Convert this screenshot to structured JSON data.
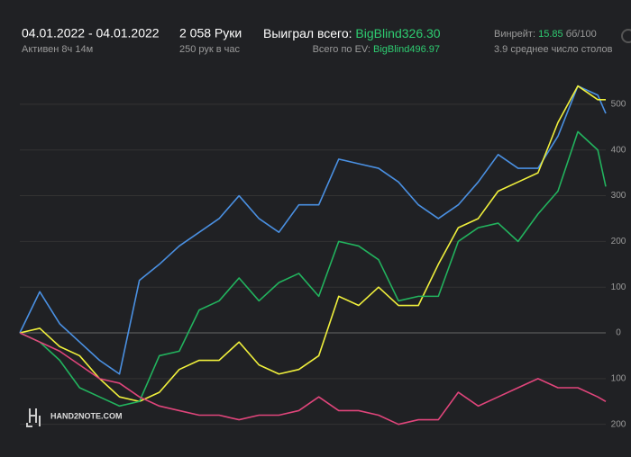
{
  "header": {
    "date_range": "04.01.2022 - 04.01.2022",
    "active": "Активен 8ч 14м",
    "hands": "2 058 Руки",
    "hands_rate": "250 рук в час",
    "won_label": "Выиграл всего:",
    "won_value": "BigBlind326.30",
    "ev_label": "Всего по EV:",
    "ev_value": "BigBlind496.97",
    "winrate_label": "Винрейт:",
    "winrate_value": "15.85",
    "winrate_unit": "бб/100",
    "tables": "3.9 среднее число столов",
    "logo": "HAND2NOTE.COM"
  },
  "chart_data": {
    "type": "line",
    "x": [
      0,
      70,
      140,
      210,
      280,
      350,
      420,
      490,
      560,
      630,
      700,
      770,
      840,
      910,
      980,
      1050,
      1120,
      1190,
      1260,
      1330,
      1400,
      1470,
      1540,
      1610,
      1680,
      1750,
      1820,
      1890,
      1960,
      2030,
      2058
    ],
    "xlim": [
      0,
      2058
    ],
    "ylim": [
      -240,
      610
    ],
    "yticks": [
      500,
      400,
      300,
      200,
      100,
      0,
      {
        "value": -100,
        "label": "100"
      },
      {
        "value": -200,
        "label": "200"
      }
    ],
    "grid": true,
    "series": [
      {
        "color": "#4a90e2",
        "values": [
          0,
          90,
          20,
          -20,
          -60,
          -90,
          115,
          150,
          190,
          220,
          250,
          300,
          250,
          220,
          280,
          280,
          380,
          370,
          360,
          330,
          280,
          250,
          280,
          330,
          390,
          360,
          360,
          430,
          540,
          520,
          480
        ]
      },
      {
        "color": "#f0f03c",
        "values": [
          0,
          10,
          -30,
          -50,
          -100,
          -140,
          -150,
          -130,
          -80,
          -60,
          -60,
          -20,
          -70,
          -90,
          -80,
          -50,
          80,
          60,
          100,
          60,
          60,
          150,
          230,
          250,
          310,
          330,
          350,
          460,
          540,
          510,
          510
        ]
      },
      {
        "color": "#22b35e",
        "values": [
          0,
          -20,
          -60,
          -120,
          -140,
          -160,
          -150,
          -50,
          -40,
          50,
          70,
          120,
          70,
          110,
          130,
          80,
          200,
          190,
          160,
          70,
          80,
          80,
          200,
          230,
          240,
          200,
          260,
          310,
          440,
          400,
          320
        ]
      },
      {
        "color": "#e0457b",
        "values": [
          0,
          -20,
          -40,
          -70,
          -100,
          -110,
          -140,
          -160,
          -170,
          -180,
          -180,
          -190,
          -180,
          -180,
          -170,
          -140,
          -170,
          -170,
          -180,
          -200,
          -190,
          -190,
          -130,
          -160,
          -140,
          -120,
          -100,
          -120,
          -120,
          -140,
          -150
        ]
      }
    ]
  }
}
